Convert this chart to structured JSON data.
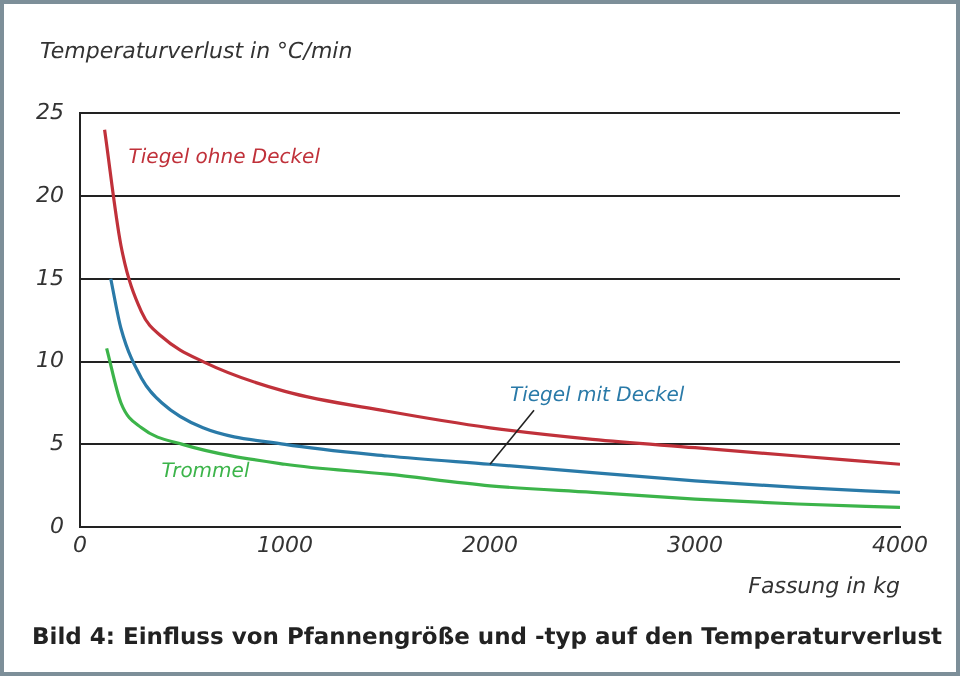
{
  "chart_data": {
    "type": "line",
    "title": "Bild 4: Einfluss von Pfannengröße und -typ auf den Temperaturverlust",
    "xlabel": "Fassung in kg",
    "ylabel": "Temperaturverlust in °C/min",
    "xlim": [
      0,
      4000
    ],
    "xticks": [
      0,
      1000,
      2000,
      3000,
      4000
    ],
    "ylim": [
      0,
      25
    ],
    "yticks": [
      0,
      5,
      10,
      15,
      20,
      25
    ],
    "grid": "y",
    "legend": false,
    "marker": "none",
    "line_style": "solid",
    "series": [
      {
        "name": "Tiegel ohne Deckel",
        "color": "#c0313a",
        "x": [
          120,
          200,
          300,
          400,
          600,
          1000,
          1500,
          2000,
          2500,
          3000,
          3500,
          4000
        ],
        "values": [
          24,
          17,
          13,
          11.5,
          10,
          8.2,
          7,
          6,
          5.3,
          4.8,
          4.3,
          3.8
        ]
      },
      {
        "name": "Tiegel mit Deckel",
        "color": "#2a7aa8",
        "x": [
          150,
          200,
          300,
          400,
          600,
          1000,
          1500,
          2000,
          2500,
          3000,
          3500,
          4000
        ],
        "values": [
          15,
          12,
          9,
          7.5,
          6,
          5,
          4.3,
          3.8,
          3.3,
          2.8,
          2.4,
          2.1
        ]
      },
      {
        "name": "Trommel",
        "color": "#3cb44a",
        "x": [
          130,
          200,
          300,
          500,
          1000,
          1500,
          2000,
          2500,
          3000,
          3500,
          4000
        ],
        "values": [
          10.8,
          7.5,
          6,
          5,
          3.8,
          3.2,
          2.5,
          2.1,
          1.7,
          1.4,
          1.2
        ]
      }
    ]
  }
}
